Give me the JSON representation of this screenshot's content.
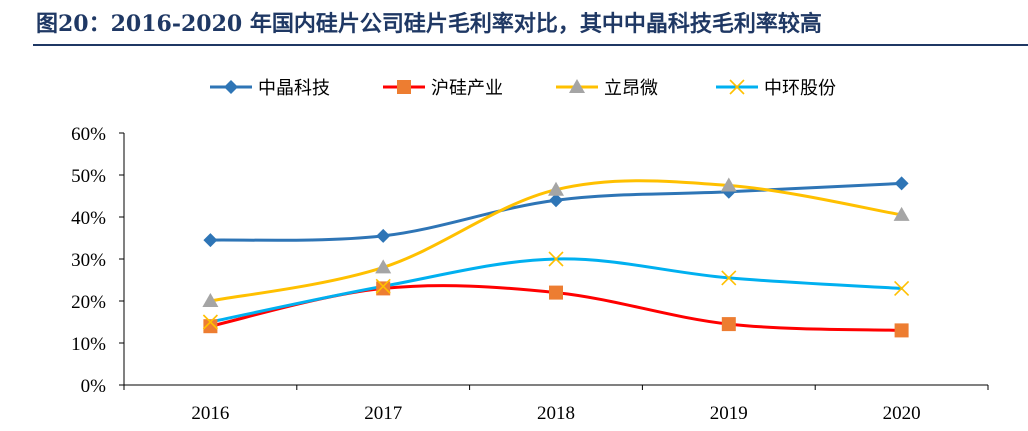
{
  "title": "图20：2016-2020 年国内硅片公司硅片毛利率对比，其中中晶科技毛利率较高",
  "chart_data": {
    "type": "line",
    "title": "",
    "xlabel": "",
    "ylabel": "",
    "categories": [
      "2016",
      "2017",
      "2018",
      "2019",
      "2020"
    ],
    "y_tick_labels": [
      "0%",
      "10%",
      "20%",
      "30%",
      "40%",
      "50%",
      "60%"
    ],
    "ylim": [
      0,
      0.6
    ],
    "grid": false,
    "legend_position": "top",
    "series": [
      {
        "name": "中晶科技",
        "color": "#2e75b6",
        "marker": "diamond",
        "values": [
          0.345,
          0.355,
          0.44,
          0.46,
          0.48
        ]
      },
      {
        "name": "沪硅产业",
        "color": "#ff0000",
        "marker_color": "#ed7d31",
        "marker": "square",
        "values": [
          0.14,
          0.23,
          0.22,
          0.145,
          0.13
        ]
      },
      {
        "name": "立昂微",
        "color": "#ffc000",
        "marker_color": "#a5a5a5",
        "marker": "triangle",
        "values": [
          0.2,
          0.28,
          0.465,
          0.475,
          0.405
        ]
      },
      {
        "name": "中环股份",
        "color": "#00b0f0",
        "marker_color": "#ffc000",
        "marker": "x",
        "values": [
          0.15,
          0.235,
          0.3,
          0.255,
          0.23
        ]
      }
    ]
  }
}
